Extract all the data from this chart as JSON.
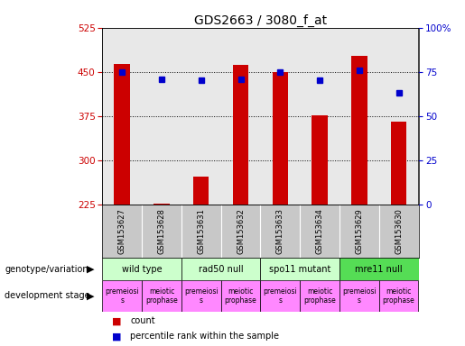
{
  "title": "GDS2663 / 3080_f_at",
  "samples": [
    "GSM153627",
    "GSM153628",
    "GSM153631",
    "GSM153632",
    "GSM153633",
    "GSM153634",
    "GSM153629",
    "GSM153630"
  ],
  "counts": [
    463,
    226,
    272,
    462,
    449,
    376,
    477,
    365
  ],
  "percentiles": [
    75,
    71,
    70,
    71,
    75,
    70,
    76,
    63
  ],
  "ylim_left": [
    225,
    525
  ],
  "ylim_right": [
    0,
    100
  ],
  "yticks_left": [
    225,
    300,
    375,
    450,
    525
  ],
  "yticks_right": [
    0,
    25,
    50,
    75,
    100
  ],
  "bar_color": "#cc0000",
  "dot_color": "#0000cc",
  "plot_bg": "#e8e8e8",
  "gsm_bg": "#c8c8c8",
  "left_axis_color": "#cc0000",
  "right_axis_color": "#0000cc",
  "geno_groups": [
    {
      "label": "wild type",
      "start": 0,
      "end": 2,
      "color": "#ccffcc"
    },
    {
      "label": "rad50 null",
      "start": 2,
      "end": 4,
      "color": "#ccffcc"
    },
    {
      "label": "spo11 mutant",
      "start": 4,
      "end": 6,
      "color": "#ccffcc"
    },
    {
      "label": "mre11 null",
      "start": 6,
      "end": 8,
      "color": "#55dd55"
    }
  ],
  "dev_stages": [
    {
      "label": "premeiosi\ns",
      "color": "#ff88ff"
    },
    {
      "label": "meiotic\nprophase",
      "color": "#ff88ff"
    },
    {
      "label": "premeiosi\ns",
      "color": "#ff88ff"
    },
    {
      "label": "meiotic\nprophase",
      "color": "#ff88ff"
    },
    {
      "label": "premeiosi\ns",
      "color": "#ff88ff"
    },
    {
      "label": "meiotic\nprophase",
      "color": "#ff88ff"
    },
    {
      "label": "premeiosi\ns",
      "color": "#ff88ff"
    },
    {
      "label": "meiotic\nprophase",
      "color": "#ff88ff"
    }
  ]
}
